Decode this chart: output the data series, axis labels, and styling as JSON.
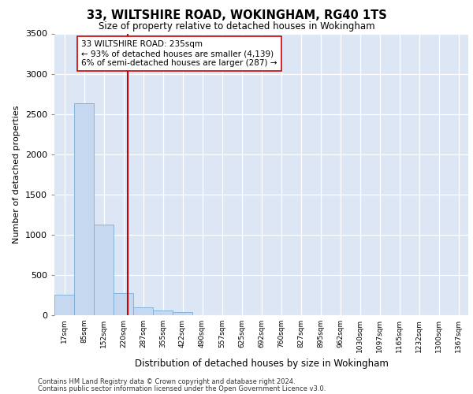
{
  "title1": "33, WILTSHIRE ROAD, WOKINGHAM, RG40 1TS",
  "title2": "Size of property relative to detached houses in Wokingham",
  "xlabel": "Distribution of detached houses by size in Wokingham",
  "ylabel": "Number of detached properties",
  "footer1": "Contains HM Land Registry data © Crown copyright and database right 2024.",
  "footer2": "Contains public sector information licensed under the Open Government Licence v3.0.",
  "bin_labels": [
    "17sqm",
    "85sqm",
    "152sqm",
    "220sqm",
    "287sqm",
    "355sqm",
    "422sqm",
    "490sqm",
    "557sqm",
    "625sqm",
    "692sqm",
    "760sqm",
    "827sqm",
    "895sqm",
    "962sqm",
    "1030sqm",
    "1097sqm",
    "1165sqm",
    "1232sqm",
    "1300sqm",
    "1367sqm"
  ],
  "bar_values": [
    250,
    2630,
    1130,
    270,
    95,
    55,
    35,
    0,
    0,
    0,
    0,
    0,
    0,
    0,
    0,
    0,
    0,
    0,
    0,
    0,
    0
  ],
  "bar_color": "#c5d8f0",
  "bar_edge_color": "#7aafd4",
  "vline_color": "#cc0000",
  "annotation_text": "33 WILTSHIRE ROAD: 235sqm\n← 93% of detached houses are smaller (4,139)\n6% of semi-detached houses are larger (287) →",
  "annotation_box_color": "white",
  "annotation_box_edge": "#cc0000",
  "ylim": [
    0,
    3500
  ],
  "yticks": [
    0,
    500,
    1000,
    1500,
    2000,
    2500,
    3000,
    3500
  ],
  "plot_bg_color": "#dce6f5",
  "grid_color": "white",
  "vline_position": 3.22
}
